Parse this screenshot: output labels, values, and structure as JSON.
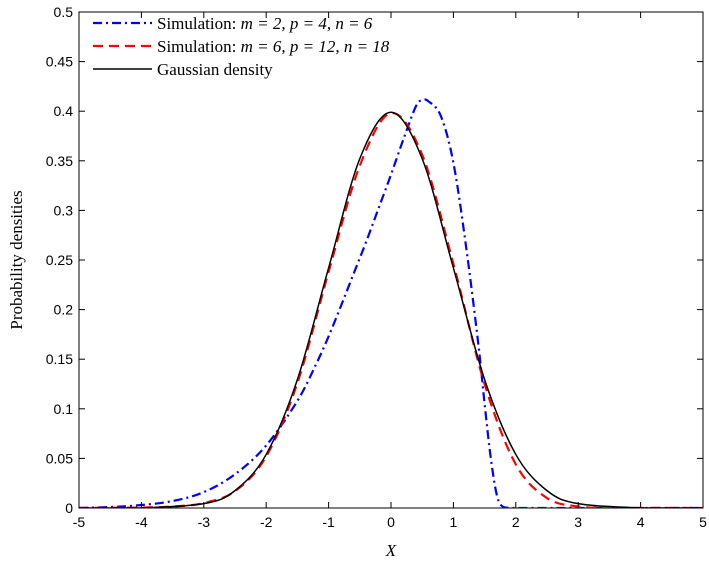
{
  "chart_data": {
    "type": "line",
    "title": "",
    "xlabel": "X",
    "ylabel": "Probability densities",
    "xlim": [
      -5,
      5
    ],
    "ylim": [
      0,
      0.5
    ],
    "xticks": [
      "-5",
      "-4",
      "-3",
      "-2",
      "-1",
      "0",
      "1",
      "2",
      "3",
      "4",
      "5"
    ],
    "yticks": [
      "0",
      "0.05",
      "0.1",
      "0.15",
      "0.2",
      "0.25",
      "0.3",
      "0.35",
      "0.4",
      "0.45",
      "0.5"
    ],
    "grid": false,
    "legend_position": "top-left",
    "series": [
      {
        "name": "Simulation: m = 2, p = 4, n = 6",
        "color": "#0000ff",
        "line_style": "dash-dot",
        "x": [
          -5,
          -4.5,
          -4,
          -3.5,
          -3,
          -2.5,
          -2,
          -1.5,
          -1.2,
          -1,
          -0.8,
          -0.6,
          -0.4,
          -0.2,
          0,
          0.2,
          0.4,
          0.5,
          0.6,
          0.8,
          1,
          1.2,
          1.4,
          1.5,
          1.6,
          1.7,
          1.8,
          2,
          2.5,
          3,
          4,
          5
        ],
        "y": [
          0,
          0.001,
          0.003,
          0.007,
          0.016,
          0.034,
          0.063,
          0.108,
          0.145,
          0.173,
          0.204,
          0.236,
          0.268,
          0.302,
          0.336,
          0.372,
          0.405,
          0.411,
          0.41,
          0.395,
          0.348,
          0.265,
          0.165,
          0.105,
          0.05,
          0.012,
          0.001,
          0,
          0,
          0,
          0,
          0
        ]
      },
      {
        "name": "Simulation: m = 6, p = 12, n = 18",
        "color": "#ff0000",
        "line_style": "dashed",
        "x": [
          -5,
          -4,
          -3.5,
          -3,
          -2.5,
          -2,
          -1.5,
          -1,
          -0.5,
          0,
          0.5,
          1,
          1.5,
          2,
          2.5,
          3,
          3.5,
          4,
          5
        ],
        "y": [
          0,
          0.0005,
          0.0015,
          0.005,
          0.017,
          0.052,
          0.126,
          0.238,
          0.345,
          0.398,
          0.356,
          0.246,
          0.125,
          0.044,
          0.01,
          0.0015,
          0.0002,
          0,
          0
        ]
      },
      {
        "name": "Gaussian density",
        "color": "#000000",
        "line_style": "solid",
        "function": "standard normal pdf",
        "x": [
          -5,
          -4,
          -3,
          -2.5,
          -2,
          -1.5,
          -1,
          -0.5,
          0,
          0.5,
          1,
          1.5,
          2,
          2.5,
          3,
          4,
          5
        ],
        "y": [
          0,
          0.0001,
          0.0044,
          0.0175,
          0.054,
          0.1295,
          0.242,
          0.3521,
          0.3989,
          0.3521,
          0.242,
          0.1295,
          0.054,
          0.0175,
          0.0044,
          0.0001,
          0
        ]
      }
    ]
  },
  "legend": {
    "entries": [
      {
        "prefix": "Simulation: ",
        "math": "m = 2, p = 4, n = 6"
      },
      {
        "prefix": "Simulation: ",
        "math": "m = 6, p = 12, n = 18"
      },
      {
        "prefix": "Gaussian density",
        "math": ""
      }
    ]
  }
}
